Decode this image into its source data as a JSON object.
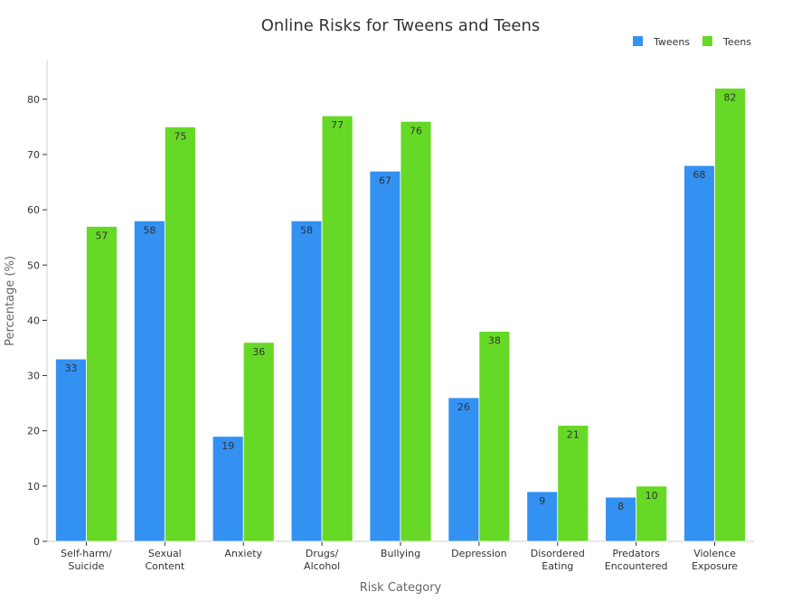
{
  "chart_data": {
    "type": "bar",
    "title": "Online Risks for Tweens and Teens",
    "xlabel": "Risk Category",
    "ylabel": "Percentage (%)",
    "ylim": [
      0,
      87
    ],
    "yticks": [
      0,
      10,
      20,
      30,
      40,
      50,
      60,
      70,
      80
    ],
    "categories": [
      [
        "Self-harm/",
        "Suicide"
      ],
      [
        "Sexual",
        "Content"
      ],
      [
        "Anxiety"
      ],
      [
        "Drugs/",
        "Alcohol"
      ],
      [
        "Bullying"
      ],
      [
        "Depression"
      ],
      [
        "Disordered",
        "Eating"
      ],
      [
        "Predators",
        "Encountered"
      ],
      [
        "Violence",
        "Exposure"
      ]
    ],
    "series": [
      {
        "name": "Tweens",
        "color": "#3391f2",
        "values": [
          33,
          58,
          19,
          58,
          67,
          26,
          9,
          8,
          68
        ]
      },
      {
        "name": "Teens",
        "color": "#66d926",
        "values": [
          57,
          75,
          36,
          77,
          76,
          38,
          21,
          10,
          82
        ]
      }
    ],
    "legend_position": "top-right",
    "grid": false
  }
}
